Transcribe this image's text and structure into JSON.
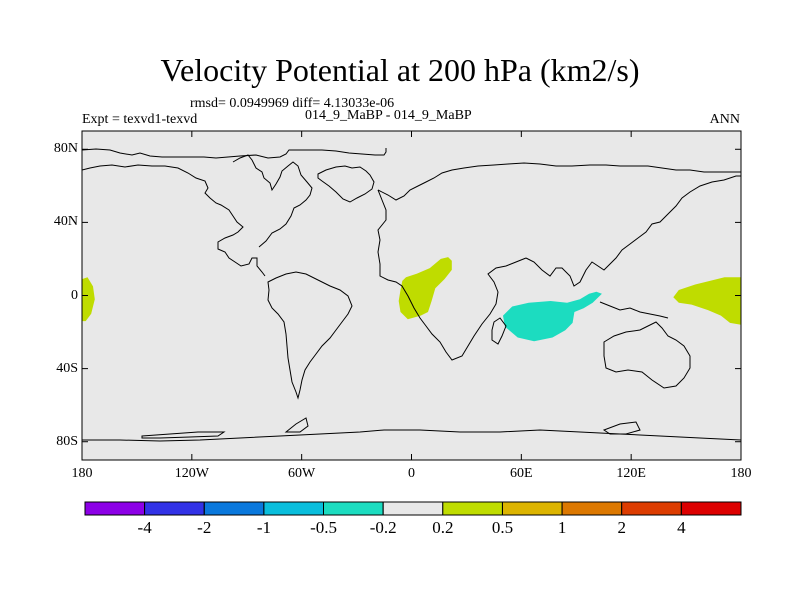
{
  "title": "Velocity Potential at 200 hPa (km2/s)",
  "stats": "rmsd= 0.0949969 diff= 4.13033e-06",
  "case_label": "014_9_MaBP - 014_9_MaBP",
  "expt_label": "Expt = texvd1-texvd",
  "season": "ANN",
  "colors": {
    "background": "#e8e8e8",
    "green_positive": "#bfdc00",
    "teal_negative": "#1cdcc0",
    "coast": "#000000"
  },
  "chart_data": {
    "type": "heatmap",
    "projection": "cylindrical-equidistant",
    "xlim": [
      -180,
      180
    ],
    "ylim": [
      -90,
      90
    ],
    "xticks": [
      {
        "value": -180,
        "label": "180"
      },
      {
        "value": -120,
        "label": "120W"
      },
      {
        "value": -60,
        "label": "60W"
      },
      {
        "value": 0,
        "label": "0"
      },
      {
        "value": 60,
        "label": "60E"
      },
      {
        "value": 120,
        "label": "120E"
      },
      {
        "value": 180,
        "label": "180"
      }
    ],
    "yticks": [
      {
        "value": 80,
        "label": "80N"
      },
      {
        "value": 40,
        "label": "40N"
      },
      {
        "value": 0,
        "label": "0"
      },
      {
        "value": -40,
        "label": "40S"
      },
      {
        "value": -80,
        "label": "80S"
      }
    ],
    "colorbar": {
      "colors": [
        "#8c00e6",
        "#3232e6",
        "#0a78dc",
        "#0abedc",
        "#1cdcc0",
        "#e8e8e8",
        "#bfdc00",
        "#dcb400",
        "#dc7800",
        "#dc3c00",
        "#dc0000"
      ],
      "labels": [
        "-4",
        "-2",
        "-1",
        "-0.5",
        "-0.2",
        "0.2",
        "0.5",
        "1",
        "2",
        "4"
      ]
    },
    "regions": [
      {
        "name": "positive-dateline-west",
        "level": "0.2 to 0.5",
        "color": "#bfdc00",
        "polygon": [
          [
            -180,
            9
          ],
          [
            -177,
            10
          ],
          [
            -174,
            5
          ],
          [
            -173,
            -2
          ],
          [
            -175,
            -10
          ],
          [
            -178,
            -14
          ],
          [
            -180,
            -14
          ]
        ]
      },
      {
        "name": "positive-atlantic-africa",
        "level": "0.2 to 0.5",
        "color": "#bfdc00",
        "polygon": [
          [
            -6,
            3
          ],
          [
            -5,
            8
          ],
          [
            -3,
            10
          ],
          [
            3,
            12
          ],
          [
            10,
            15
          ],
          [
            16,
            20
          ],
          [
            20,
            21
          ],
          [
            22,
            19
          ],
          [
            22,
            14
          ],
          [
            18,
            9
          ],
          [
            13,
            4
          ],
          [
            11,
            -3
          ],
          [
            9,
            -9
          ],
          [
            5,
            -11
          ],
          [
            -2,
            -13
          ],
          [
            -6,
            -9
          ],
          [
            -7,
            -3
          ]
        ]
      },
      {
        "name": "positive-dateline-east",
        "level": "0.2 to 0.5",
        "color": "#bfdc00",
        "polygon": [
          [
            180,
            10
          ],
          [
            171,
            10
          ],
          [
            163,
            8
          ],
          [
            155,
            6
          ],
          [
            146,
            3
          ],
          [
            143,
            -1
          ],
          [
            146,
            -4
          ],
          [
            153,
            -5
          ],
          [
            162,
            -8
          ],
          [
            169,
            -11
          ],
          [
            174,
            -15
          ],
          [
            180,
            -16
          ]
        ]
      },
      {
        "name": "negative-indian-ocean",
        "level": "-0.5 to -0.2",
        "color": "#1cdcc0",
        "polygon": [
          [
            104,
            1
          ],
          [
            101,
            2
          ],
          [
            97,
            1
          ],
          [
            92,
            -2
          ],
          [
            85,
            -4
          ],
          [
            76,
            -3
          ],
          [
            64,
            -4
          ],
          [
            55,
            -6
          ],
          [
            50,
            -11
          ],
          [
            51,
            -17
          ],
          [
            58,
            -23
          ],
          [
            67,
            -25
          ],
          [
            77,
            -23
          ],
          [
            84,
            -19
          ],
          [
            88,
            -15
          ],
          [
            89,
            -9
          ],
          [
            94,
            -7
          ],
          [
            99,
            -4
          ]
        ]
      }
    ]
  }
}
